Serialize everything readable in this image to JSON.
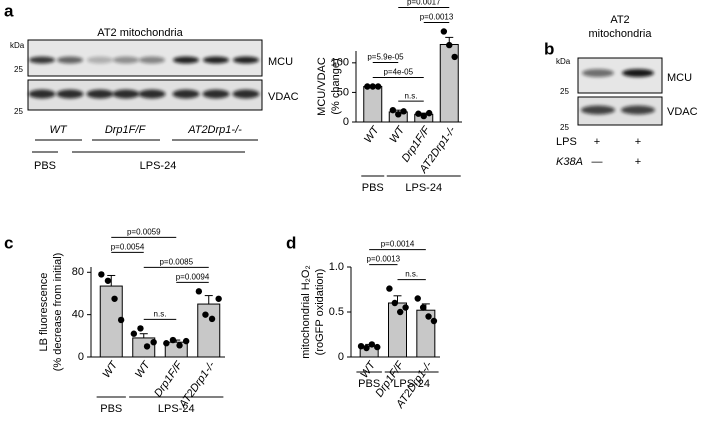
{
  "panels": [
    "a",
    "b",
    "c",
    "d"
  ],
  "blot_a": {
    "title": "AT2 mitochondria",
    "kda": "kDa",
    "marker_top": "25",
    "marker_bottom": "25",
    "bands": [
      "MCU",
      "VDAC"
    ],
    "lanes": [
      "WT",
      "Drp1F/F",
      "AT2Drp1-/-"
    ],
    "groups": [
      "PBS",
      "LPS-24"
    ]
  },
  "blot_b": {
    "title": [
      "AT2",
      "mitochondria"
    ],
    "kda": "kDa",
    "marker_top": "25",
    "marker_bottom": "25",
    "bands": [
      "MCU",
      "VDAC"
    ],
    "rows": [
      {
        "name": "LPS",
        "marks": [
          "+",
          "+"
        ]
      },
      {
        "name": "K38A",
        "marks": [
          "—",
          "+"
        ]
      }
    ]
  },
  "chart_data": [
    {
      "type": "bar",
      "ylabel": [
        "MCU/VDAC",
        "(% change)"
      ],
      "categories": [
        "WT",
        "WT",
        "Drp1F/F",
        "AT2Drp1-/-"
      ],
      "values": [
        60,
        17,
        13,
        131
      ],
      "errors": [
        1,
        3,
        2,
        12
      ],
      "points": [
        [
          60,
          60,
          60
        ],
        [
          20,
          13,
          18
        ],
        [
          14,
          10,
          15
        ],
        [
          153,
          130,
          110
        ]
      ],
      "ylim": [
        0,
        120
      ],
      "yticks": [
        0,
        50,
        100
      ],
      "color": "#c8c8c8",
      "comparisons": [
        {
          "pair": [
            1,
            2
          ],
          "label": "n.s."
        },
        {
          "pair": [
            0,
            2
          ],
          "label": "p=4e-05"
        },
        {
          "pair": [
            0,
            1
          ],
          "label": "p=5.9e-05"
        },
        {
          "pair": [
            2,
            3
          ],
          "label": "p=0.0013"
        },
        {
          "pair": [
            1,
            3
          ],
          "label": "p=0.0017"
        }
      ],
      "groups": [
        {
          "label": "PBS",
          "span": [
            0,
            0
          ]
        },
        {
          "label": "LPS-24",
          "span": [
            1,
            3
          ]
        }
      ]
    },
    {
      "type": "bar",
      "ylabel": [
        "LB fluorescence",
        "(% decrease from initial)"
      ],
      "categories": [
        "WT",
        "WT",
        "Drp1F/F",
        "AT2Drp1-/-"
      ],
      "values": [
        67,
        18,
        14,
        50
      ],
      "errors": [
        10,
        4,
        2,
        8
      ],
      "points": [
        [
          78,
          72,
          55,
          35
        ],
        [
          22,
          27,
          10,
          14
        ],
        [
          13,
          16,
          11,
          15
        ],
        [
          62,
          40,
          36,
          55
        ]
      ],
      "ylim": [
        0,
        85
      ],
      "yticks": [
        0,
        40,
        80
      ],
      "color": "#c8c8c8",
      "comparisons": [
        {
          "pair": [
            1,
            2
          ],
          "label": "n.s."
        },
        {
          "pair": [
            2,
            3
          ],
          "label": "p=0.0094"
        },
        {
          "pair": [
            1,
            3
          ],
          "label": "p=0.0085"
        },
        {
          "pair": [
            0,
            1
          ],
          "label": "p=0.0054"
        },
        {
          "pair": [
            0,
            2
          ],
          "label": "p=0.0059"
        }
      ],
      "groups": [
        {
          "label": "PBS",
          "span": [
            0,
            0
          ]
        },
        {
          "label": "LPS-24",
          "span": [
            1,
            3
          ]
        }
      ]
    },
    {
      "type": "bar",
      "ylabel": [
        "mitochondrial H₂O₂",
        "(roGFP oxidation)"
      ],
      "categories": [
        "WT",
        "Drp1F/F",
        "AT2Drp1-/-"
      ],
      "values": [
        0.12,
        0.6,
        0.52
      ],
      "errors": [
        0.02,
        0.08,
        0.07
      ],
      "points": [
        [
          0.12,
          0.1,
          0.14,
          0.11
        ],
        [
          0.76,
          0.6,
          0.5,
          0.55
        ],
        [
          0.65,
          0.55,
          0.45,
          0.4
        ]
      ],
      "ylim": [
        0,
        1
      ],
      "yticks": [
        0,
        0.5,
        {
          "value": 1,
          "label": "1.0"
        }
      ],
      "color": "#c8c8c8",
      "comparisons": [
        {
          "pair": [
            1,
            2
          ],
          "label": "n.s."
        },
        {
          "pair": [
            0,
            1
          ],
          "label": "p=0.0013"
        },
        {
          "pair": [
            0,
            2
          ],
          "label": "p=0.0014"
        }
      ],
      "groups": [
        {
          "label": "PBS",
          "span": [
            0,
            0
          ]
        },
        {
          "label": "LPS-24",
          "span": [
            1,
            2
          ]
        }
      ]
    }
  ]
}
